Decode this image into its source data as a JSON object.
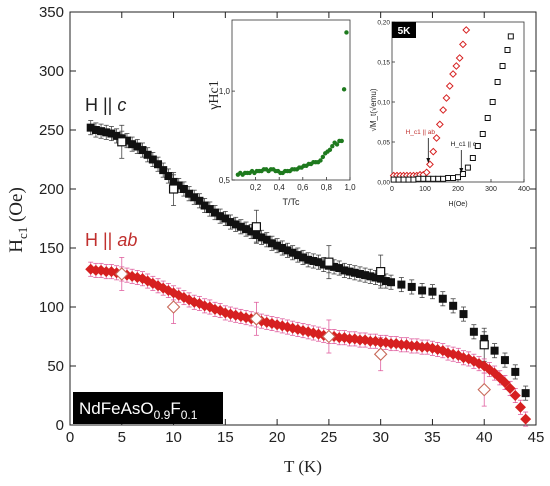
{
  "main": {
    "type": "scatter",
    "xlabel": "T (K)",
    "ylabel_main": "H",
    "ylabel_sub": "c1",
    "ylabel_unit": " (Oe)",
    "xlim": [
      0,
      45
    ],
    "ylim": [
      0,
      350
    ],
    "xticks": [
      0,
      5,
      10,
      15,
      20,
      25,
      30,
      35,
      40,
      45
    ],
    "yticks": [
      0,
      50,
      100,
      150,
      200,
      250,
      300,
      350
    ],
    "label_c_prefix": "H || ",
    "label_c_axis": "c",
    "label_ab_prefix": "H || ",
    "label_ab_axis": "ab",
    "compound_parts": [
      "NdFeAsO",
      "0.9",
      "F",
      "0.1"
    ],
    "colors": {
      "c": "#111111",
      "ab": "#d62020",
      "ab_label": "#c0302e",
      "errbar_ab": "#e060a0"
    }
  },
  "chart_data": [
    {
      "type": "scatter",
      "name": "main",
      "series": [
        {
          "name": "H || c",
          "style": "filled-square",
          "x": [
            2,
            2.5,
            3,
            3.5,
            4,
            4.5,
            5,
            5.5,
            6,
            6.5,
            7,
            7.5,
            8,
            8.5,
            9,
            9.5,
            10,
            10.5,
            11,
            11.5,
            12,
            12.5,
            13,
            13.5,
            14,
            14.5,
            15,
            15.5,
            16,
            16.5,
            17,
            17.5,
            18,
            18.5,
            19,
            19.5,
            20,
            20.5,
            21,
            21.5,
            22,
            22.5,
            23,
            23.5,
            24,
            24.5,
            25,
            25.5,
            26,
            26.5,
            27,
            27.5,
            28,
            28.5,
            29,
            29.5,
            30,
            30.5,
            31,
            32,
            33,
            34,
            35,
            36,
            37,
            38,
            39,
            40,
            41,
            42,
            43,
            44
          ],
          "y": [
            252,
            250,
            249,
            248,
            247,
            245,
            243,
            241,
            238,
            236,
            233,
            229,
            225,
            221,
            216,
            211,
            206,
            203,
            200,
            196,
            193,
            190,
            186,
            183,
            180,
            177,
            175,
            172,
            170,
            168,
            166,
            164,
            161,
            159,
            157,
            154,
            152,
            150,
            148,
            146,
            144,
            142,
            140,
            139,
            138,
            136,
            135,
            134,
            133,
            131,
            130,
            129,
            128,
            127,
            126,
            125,
            124,
            122,
            121,
            119,
            117,
            114,
            113,
            107,
            101,
            94,
            79,
            73,
            63,
            55,
            45,
            27
          ]
        },
        {
          "name": "H || c (open)",
          "style": "open-square",
          "x": [
            5,
            10,
            18,
            25,
            30,
            40
          ],
          "y": [
            240,
            200,
            168,
            138,
            130,
            68
          ]
        },
        {
          "name": "H || ab",
          "style": "filled-diamond",
          "x": [
            2,
            2.5,
            3,
            3.5,
            4,
            4.5,
            5,
            5.5,
            6,
            6.5,
            7,
            7.5,
            8,
            8.5,
            9,
            9.5,
            10,
            10.5,
            11,
            11.5,
            12,
            12.5,
            13,
            13.5,
            14,
            14.5,
            15,
            15.5,
            16,
            16.5,
            17,
            17.5,
            18,
            18.5,
            19,
            19.5,
            20,
            20.5,
            21,
            21.5,
            22,
            22.5,
            23,
            23.5,
            24,
            24.5,
            25,
            25.5,
            26,
            26.5,
            27,
            27.5,
            28,
            28.5,
            29,
            29.5,
            30,
            30.5,
            31,
            31.5,
            32,
            32.5,
            33,
            33.5,
            34,
            34.5,
            35,
            35.5,
            36,
            36.5,
            37,
            37.5,
            38,
            38.5,
            39,
            39.5,
            40,
            40.5,
            41,
            41.5,
            42,
            42.5,
            43,
            43.5,
            44
          ],
          "y": [
            132,
            131,
            131,
            130,
            130,
            129,
            128,
            127,
            126,
            125,
            124,
            122,
            120,
            118,
            116,
            114,
            112,
            110,
            108,
            106,
            104,
            103,
            101,
            100,
            98,
            97,
            95,
            94,
            93,
            92,
            91,
            90,
            89,
            88,
            87,
            86,
            85,
            84,
            83,
            82,
            81,
            80,
            79,
            78,
            77,
            76,
            75,
            75,
            74,
            74,
            73,
            73,
            72,
            72,
            71,
            71,
            70,
            70,
            69,
            69,
            68,
            68,
            67,
            67,
            66,
            66,
            65,
            64,
            63,
            61,
            60,
            59,
            57,
            56,
            54,
            52,
            50,
            47,
            44,
            40,
            36,
            31,
            25,
            15,
            5
          ]
        },
        {
          "name": "H || ab (open)",
          "style": "open-diamond",
          "x": [
            5,
            10,
            18,
            25,
            30,
            40
          ],
          "y": [
            128,
            100,
            90,
            75,
            60,
            30
          ]
        }
      ],
      "xlabel": "T (K)",
      "ylabel": "Hc1 (Oe)",
      "xlim": [
        0,
        45
      ],
      "ylim": [
        0,
        350
      ]
    },
    {
      "type": "scatter",
      "name": "inset1",
      "xlabel": "T/Tc",
      "ylabel": "γHc1",
      "xlim": [
        0,
        1.0
      ],
      "ylim": [
        0.5,
        1.4
      ],
      "xticks": [
        "0,2",
        "0,4",
        "0,6",
        "0,8",
        "1,0"
      ],
      "xtick_vals": [
        0.2,
        0.4,
        0.6,
        0.8,
        1.0
      ],
      "yticks": [
        "0,5",
        "1,0"
      ],
      "ytick_vals": [
        0.5,
        1.0
      ],
      "series": [
        {
          "name": "gamma",
          "x": [
            0.05,
            0.07,
            0.09,
            0.11,
            0.13,
            0.15,
            0.17,
            0.19,
            0.21,
            0.23,
            0.25,
            0.27,
            0.29,
            0.31,
            0.33,
            0.35,
            0.37,
            0.39,
            0.41,
            0.43,
            0.45,
            0.47,
            0.49,
            0.51,
            0.53,
            0.55,
            0.57,
            0.59,
            0.61,
            0.63,
            0.65,
            0.67,
            0.69,
            0.71,
            0.73,
            0.75,
            0.77,
            0.79,
            0.81,
            0.83,
            0.85,
            0.87,
            0.89,
            0.91,
            0.93,
            0.95,
            0.97
          ],
          "y": [
            0.53,
            0.54,
            0.53,
            0.54,
            0.54,
            0.54,
            0.55,
            0.54,
            0.55,
            0.55,
            0.55,
            0.56,
            0.56,
            0.55,
            0.56,
            0.56,
            0.55,
            0.55,
            0.54,
            0.54,
            0.55,
            0.55,
            0.55,
            0.56,
            0.56,
            0.56,
            0.57,
            0.57,
            0.58,
            0.58,
            0.59,
            0.59,
            0.6,
            0.6,
            0.6,
            0.61,
            0.63,
            0.65,
            0.66,
            0.67,
            0.69,
            0.71,
            0.7,
            0.72,
            0.72,
            1.01,
            1.33
          ]
        }
      ]
    },
    {
      "type": "scatter",
      "name": "inset2",
      "badge": "5K",
      "xlabel": "H(Oe)",
      "ylabel": "√M_t(√emu)",
      "xlim": [
        0,
        400
      ],
      "ylim": [
        0,
        0.2
      ],
      "xticks": [
        "0",
        "100",
        "200",
        "300",
        "400"
      ],
      "xtick_vals": [
        0,
        100,
        200,
        300,
        400
      ],
      "yticks": [
        "0,00",
        "0,05",
        "0,10",
        "0,15",
        "0,20"
      ],
      "ytick_vals": [
        0,
        0.05,
        0.1,
        0.15,
        0.2
      ],
      "annotation_ab": "H_c1 || ab",
      "annotation_c": "H_c1 || c",
      "annotation_ab_x": 110,
      "annotation_c_x": 210,
      "series": [
        {
          "name": "H || ab",
          "style": "open-diamond",
          "x": [
            5,
            15,
            25,
            35,
            45,
            55,
            65,
            75,
            85,
            95,
            105,
            115,
            125,
            135,
            145,
            155,
            165,
            175,
            185,
            195,
            205,
            215,
            225
          ],
          "y": [
            0.008,
            0.008,
            0.008,
            0.008,
            0.008,
            0.008,
            0.008,
            0.008,
            0.009,
            0.009,
            0.012,
            0.022,
            0.038,
            0.055,
            0.072,
            0.09,
            0.105,
            0.12,
            0.135,
            0.145,
            0.155,
            0.172,
            0.19
          ]
        },
        {
          "name": "H || c",
          "style": "open-square",
          "x": [
            5,
            20,
            35,
            50,
            65,
            80,
            95,
            110,
            125,
            140,
            155,
            170,
            185,
            200,
            215,
            230,
            245,
            260,
            275,
            290,
            305,
            320,
            335,
            350,
            360
          ],
          "y": [
            0.003,
            0.003,
            0.003,
            0.003,
            0.003,
            0.004,
            0.004,
            0.004,
            0.004,
            0.004,
            0.004,
            0.005,
            0.005,
            0.006,
            0.01,
            0.018,
            0.03,
            0.045,
            0.06,
            0.08,
            0.1,
            0.125,
            0.145,
            0.165,
            0.182
          ]
        }
      ]
    }
  ]
}
